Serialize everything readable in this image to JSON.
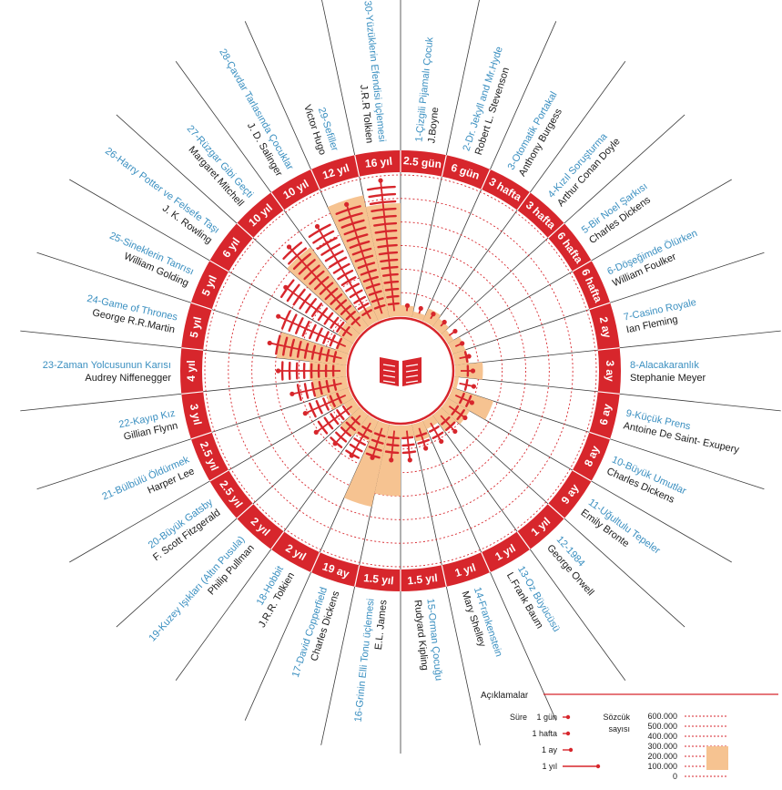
{
  "chart_data": {
    "type": "radial-bar",
    "word_scale_max": 600000,
    "books": [
      {
        "n": "1",
        "title": "Çizgili Pijamalı Çocuk",
        "author": "J.Boyne",
        "time": "2.5 gün",
        "words": 47000,
        "dur": 0.05
      },
      {
        "n": "2",
        "title": "Dr. Jekyll and Mr.Hyde",
        "author": "Robert L. Stevenson",
        "time": "6 gün",
        "words": 26000,
        "dur": 0.12
      },
      {
        "n": "3",
        "title": "Otomatik Portakal",
        "author": "Anthony Burgess",
        "time": "3 hafta",
        "words": 59000,
        "dur": 0.25
      },
      {
        "n": "4",
        "title": "Kızıl Soruşturma",
        "author": "Arthur Conan Doyle",
        "time": "3 hafta",
        "words": 44000,
        "dur": 0.25
      },
      {
        "n": "5",
        "title": "Bir Noel Şarkısı",
        "author": "Charles Dickens",
        "time": "6 hafta",
        "words": 29000,
        "dur": 0.45
      },
      {
        "n": "6",
        "title": "Döşeğimde Ölürken",
        "author": "William Foulker",
        "time": "6 hafta",
        "words": 57000,
        "dur": 0.45
      },
      {
        "n": "7",
        "title": "Casino Royale",
        "author": "Ian Fleming",
        "time": "2 ay",
        "words": 60000,
        "dur": 0.6
      },
      {
        "n": "8",
        "title": "Alacakaranlık",
        "author": "Stephanie Meyer",
        "time": "3 ay",
        "words": 118000,
        "dur": 0.75
      },
      {
        "n": "9",
        "title": "Küçük Prens",
        "author": "Antoine De Saint- Exupery",
        "time": "6 ay",
        "words": 17000,
        "dur": 0.9
      },
      {
        "n": "10",
        "title": "Büyük Umutlar",
        "author": "Charles Dickens",
        "time": "8 ay",
        "words": 183000,
        "dur": 1.1
      },
      {
        "n": "11",
        "title": "Uğultulu Tepeler",
        "author": "Emily Bronte",
        "time": "9 ay",
        "words": 107000,
        "dur": 1.2
      },
      {
        "n": "12",
        "title": "1984",
        "author": "George Orwell",
        "time": "1 yıl",
        "words": 89000,
        "dur": 1.3
      },
      {
        "n": "13",
        "title": "Oz Büyücüsü",
        "author": "L.Frank Baum",
        "time": "1 yıl",
        "words": 39000,
        "dur": 1.3
      },
      {
        "n": "14",
        "title": "Frankenstein",
        "author": "Mary Shelley",
        "time": "1 yıl",
        "words": 75000,
        "dur": 1.3
      },
      {
        "n": "15",
        "title": "Orman Çocuğu",
        "author": "Rudyard Kipling",
        "time": "1.5 yıl",
        "words": 51000,
        "dur": 1.8
      },
      {
        "n": "16",
        "title": "Grinin Elli Tonu üçlemesi",
        "author": "E.L. James",
        "time": "1.5 yıl",
        "words": 300000,
        "dur": 1.8
      },
      {
        "n": "17",
        "title": "David Copperfield",
        "author": "Charles Dickens",
        "time": "19 ay",
        "words": 358000,
        "dur": 1.9
      },
      {
        "n": "18",
        "title": "Hobbit",
        "author": "J.R.R. Tolkien",
        "time": "2 yıl",
        "words": 95000,
        "dur": 2.3
      },
      {
        "n": "19",
        "title": "Kuzey Işıkları (Altın Pusula)",
        "author": "Philip Pullman",
        "time": "2 yıl",
        "words": 112000,
        "dur": 2.3
      },
      {
        "n": "20",
        "title": "Büyük Gatsby",
        "author": "F. Scott Fitzgerald",
        "time": "2.5 yıl",
        "words": 47000,
        "dur": 2.7
      },
      {
        "n": "21",
        "title": "Bülbülü Öldürmek",
        "author": "Harper Lee",
        "time": "2.5 yıl",
        "words": 100000,
        "dur": 2.7
      },
      {
        "n": "22",
        "title": "Kayıp Kız",
        "author": "Gillian Flynn",
        "time": "3 yıl",
        "words": 145000,
        "dur": 3.1
      },
      {
        "n": "23",
        "title": "Zaman Yolcusunun Karısı",
        "author": "Audrey Niffenegger",
        "time": "4 yıl",
        "words": 156000,
        "dur": 3.8
      },
      {
        "n": "24",
        "title": "Game of Thrones",
        "author": "George R.R.Martin",
        "time": "5 yıl",
        "words": 298000,
        "dur": 4.5
      },
      {
        "n": "25",
        "title": "Sineklerin Tanrısı",
        "author": "William Golding",
        "time": "5 yıl",
        "words": 60000,
        "dur": 4.5
      },
      {
        "n": "26",
        "title": "Harry Potter ve Felsefe Taşı",
        "author": "J. K. Rowling",
        "time": "6 yıl",
        "words": 77000,
        "dur": 5.0
      },
      {
        "n": "27",
        "title": "Rüzgar Gibi Geçti",
        "author": "Margaret Mitchell",
        "time": "10 yıl",
        "words": 418000,
        "dur": 6.5
      },
      {
        "n": "28",
        "title": "Çavdar Tarlasında Çocuklar",
        "author": "J. D. Salinger",
        "time": "10 yıl",
        "words": 73000,
        "dur": 6.5
      },
      {
        "n": "29",
        "title": "Sefiller",
        "author": "Victor Hugo",
        "time": "12 yıl",
        "words": 530000,
        "dur": 7.0
      },
      {
        "n": "30",
        "title": "Yüzüklerin Efendisi üçlemesi",
        "author": "J.R.R Tolkien",
        "time": "16 yıl",
        "words": 480000,
        "dur": 8.0
      }
    ]
  },
  "legend": {
    "title": "Açıklamalar",
    "duration_label": "Süre",
    "durations": [
      {
        "label": "1 gün",
        "yrs": 0.02
      },
      {
        "label": "1 hafta",
        "yrs": 0.1
      },
      {
        "label": "1 ay",
        "yrs": 0.3
      },
      {
        "label": "1 yıl",
        "yrs": 1.3
      }
    ],
    "words_label_1": "Sözcük",
    "words_label_2": "sayısı",
    "scale": [
      "600.000",
      "500.000",
      "400.000",
      "300.000",
      "200.000",
      "100.000",
      "0"
    ]
  },
  "colors": {
    "red": "#d7262c",
    "orange": "#f6c391",
    "white": "#ffffff",
    "title": "#3a8fc0",
    "text": "#1a1a1a"
  },
  "center_icon": "open-book-icon"
}
